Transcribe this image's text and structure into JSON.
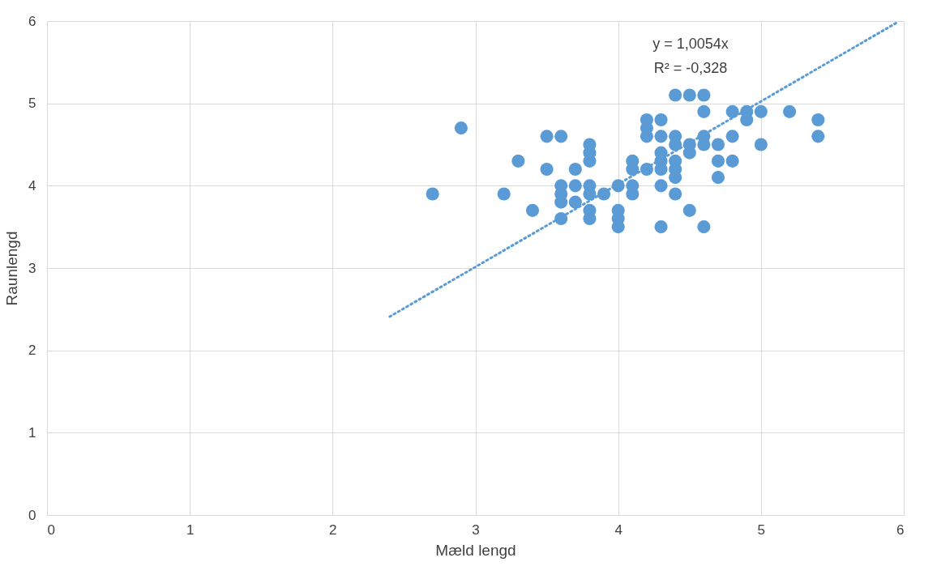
{
  "chart_data": {
    "type": "scatter",
    "xlabel": "Mæld lengd",
    "ylabel": "Raunlengd",
    "xlim": [
      0,
      6
    ],
    "ylim": [
      0,
      6
    ],
    "xticks": [
      0,
      1,
      2,
      3,
      4,
      5,
      6
    ],
    "yticks": [
      0,
      1,
      2,
      3,
      4,
      5,
      6
    ],
    "grid": true,
    "marker": "circle",
    "annotations": [
      "y = 1,0054x",
      "R² = -0,328"
    ],
    "series": [
      {
        "color": "#5b9bd5",
        "x": [
          2.7,
          2.9,
          3.2,
          3.3,
          3.4,
          3.5,
          3.5,
          3.6,
          3.6,
          3.6,
          3.6,
          3.6,
          3.7,
          3.7,
          3.7,
          3.8,
          3.8,
          3.8,
          3.8,
          3.8,
          3.8,
          3.8,
          3.9,
          4.0,
          4.0,
          4.0,
          4.0,
          4.1,
          4.1,
          4.1,
          4.1,
          4.2,
          4.2,
          4.2,
          4.2,
          4.3,
          4.3,
          4.3,
          4.3,
          4.3,
          4.3,
          4.3,
          4.4,
          4.4,
          4.4,
          4.4,
          4.4,
          4.4,
          4.4,
          4.5,
          4.5,
          4.5,
          4.5,
          4.6,
          4.6,
          4.6,
          4.6,
          4.6,
          4.7,
          4.7,
          4.7,
          4.8,
          4.8,
          4.8,
          4.9,
          4.9,
          5.0,
          5.0,
          5.2,
          5.4,
          5.4
        ],
        "values": [
          3.9,
          4.7,
          3.9,
          4.3,
          3.7,
          4.6,
          4.2,
          4.6,
          4.0,
          3.9,
          3.8,
          3.6,
          4.2,
          4.0,
          3.8,
          4.5,
          4.4,
          4.3,
          4.0,
          3.9,
          3.7,
          3.6,
          3.9,
          4.0,
          3.7,
          3.6,
          3.5,
          4.3,
          4.2,
          4.0,
          3.9,
          4.8,
          4.7,
          4.6,
          4.2,
          4.8,
          4.6,
          4.4,
          4.3,
          4.2,
          4.0,
          3.5,
          5.1,
          4.6,
          4.5,
          4.3,
          4.2,
          4.1,
          3.9,
          5.1,
          4.5,
          4.4,
          3.7,
          5.1,
          4.9,
          4.6,
          4.5,
          3.5,
          4.5,
          4.3,
          4.1,
          4.9,
          4.6,
          4.3,
          4.9,
          4.8,
          4.9,
          4.5,
          4.9,
          4.8,
          4.6
        ]
      },
      {
        "type": "line",
        "color": "#5b9bd5",
        "line_style": "dotted",
        "marker": "none",
        "x": [
          2.4,
          5.96
        ],
        "values": [
          2.41,
          5.99
        ]
      }
    ]
  }
}
